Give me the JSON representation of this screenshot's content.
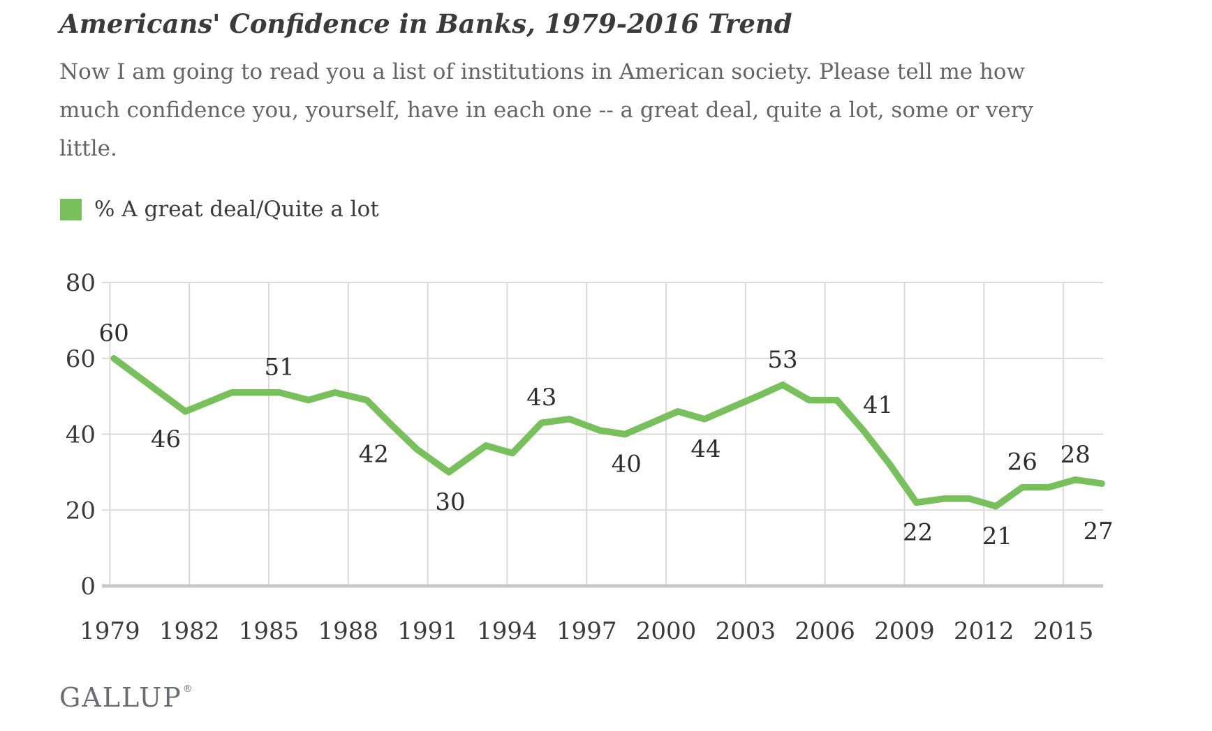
{
  "title": "Americans' Confidence in Banks, 1979-2016 Trend",
  "subtitle": "Now I am going to read you a list of institutions in American society. Please tell me how much confidence you, yourself, have in each one -- a great deal, quite a lot, some or very little.",
  "legend": {
    "label": "% A great deal/Quite a lot",
    "swatch_color": "#78c05c"
  },
  "footer": {
    "brand": "GALLUP",
    "mark": "®"
  },
  "colors": {
    "line": "#78c05c",
    "grid": "#dadada",
    "zero_axis": "#c8c8c8",
    "tick_text": "#3a3a3a",
    "data_label_text": "#2d2d2d"
  },
  "chart_data": {
    "type": "line",
    "title": "Americans' Confidence in Banks, 1979-2016 Trend",
    "xlabel": "",
    "ylabel": "",
    "x_range": [
      1978.7,
      2016.5
    ],
    "y_range": [
      0,
      80
    ],
    "x_ticks": [
      1979,
      1982,
      1985,
      1988,
      1991,
      1994,
      1997,
      2000,
      2003,
      2006,
      2009,
      2012,
      2015
    ],
    "y_ticks": [
      0,
      20,
      40,
      60,
      80
    ],
    "grid": true,
    "legend_position": "top-left",
    "series": [
      {
        "name": "% A great deal/Quite a lot",
        "color": "#78c05c",
        "points": [
          {
            "x": 1979.15,
            "year": 1979,
            "value": 60
          },
          {
            "x": 1981.85,
            "year": 1981,
            "value": 46
          },
          {
            "x": 1983.6,
            "year": 1983,
            "value": 51
          },
          {
            "x": 1984.75,
            "year": 1984,
            "value": 51
          },
          {
            "x": 1985.4,
            "year": 1985,
            "value": 51
          },
          {
            "x": 1986.5,
            "year": 1986,
            "value": 49
          },
          {
            "x": 1987.5,
            "year": 1987,
            "value": 51
          },
          {
            "x": 1988.7,
            "year": 1988,
            "value": 49
          },
          {
            "x": 1989.7,
            "year": 1989,
            "value": 42
          },
          {
            "x": 1990.6,
            "year": 1990,
            "value": 36
          },
          {
            "x": 1991.8,
            "year": 1991,
            "value": 30
          },
          {
            "x": 1993.2,
            "year": 1993,
            "value": 37
          },
          {
            "x": 1994.2,
            "year": 1994,
            "value": 35
          },
          {
            "x": 1995.3,
            "year": 1995,
            "value": 43
          },
          {
            "x": 1996.35,
            "year": 1996,
            "value": 44
          },
          {
            "x": 1997.5,
            "year": 1997,
            "value": 41
          },
          {
            "x": 1998.45,
            "year": 1998,
            "value": 40
          },
          {
            "x": 1999.45,
            "year": 1999,
            "value": 43
          },
          {
            "x": 2000.45,
            "year": 2000,
            "value": 46
          },
          {
            "x": 2001.45,
            "year": 2001,
            "value": 44
          },
          {
            "x": 2002.45,
            "year": 2002,
            "value": 47
          },
          {
            "x": 2003.45,
            "year": 2003,
            "value": 50
          },
          {
            "x": 2004.4,
            "year": 2004,
            "value": 53
          },
          {
            "x": 2005.4,
            "year": 2005,
            "value": 49
          },
          {
            "x": 2006.45,
            "year": 2006,
            "value": 49
          },
          {
            "x": 2007.45,
            "year": 2007,
            "value": 41
          },
          {
            "x": 2008.45,
            "year": 2008,
            "value": 32
          },
          {
            "x": 2009.45,
            "year": 2009,
            "value": 22
          },
          {
            "x": 2010.5,
            "year": 2010,
            "value": 23
          },
          {
            "x": 2011.45,
            "year": 2011,
            "value": 23
          },
          {
            "x": 2012.45,
            "year": 2012,
            "value": 21
          },
          {
            "x": 2013.45,
            "year": 2013,
            "value": 26
          },
          {
            "x": 2014.45,
            "year": 2014,
            "value": 26
          },
          {
            "x": 2015.45,
            "year": 2015,
            "value": 28
          },
          {
            "x": 2016.45,
            "year": 2016,
            "value": 27
          }
        ]
      }
    ],
    "annotations": [
      {
        "year": 1979,
        "value": 60,
        "position": "above"
      },
      {
        "year": 1981,
        "value": 46,
        "position": "below-left"
      },
      {
        "year": 1985,
        "value": 51,
        "position": "above"
      },
      {
        "year": 1989,
        "value": 42,
        "position": "below-left"
      },
      {
        "year": 1991,
        "value": 30,
        "position": "below"
      },
      {
        "year": 1995,
        "value": 43,
        "position": "above"
      },
      {
        "year": 1998,
        "value": 40,
        "position": "below"
      },
      {
        "year": 2001,
        "value": 44,
        "position": "below"
      },
      {
        "year": 2004,
        "value": 53,
        "position": "above"
      },
      {
        "year": 2007,
        "value": 41,
        "position": "above-right"
      },
      {
        "year": 2009,
        "value": 22,
        "position": "below"
      },
      {
        "year": 2012,
        "value": 21,
        "position": "below"
      },
      {
        "year": 2013,
        "value": 26,
        "position": "above"
      },
      {
        "year": 2015,
        "value": 28,
        "position": "above"
      },
      {
        "year": 2016,
        "value": 27,
        "position": "below-end"
      }
    ]
  }
}
